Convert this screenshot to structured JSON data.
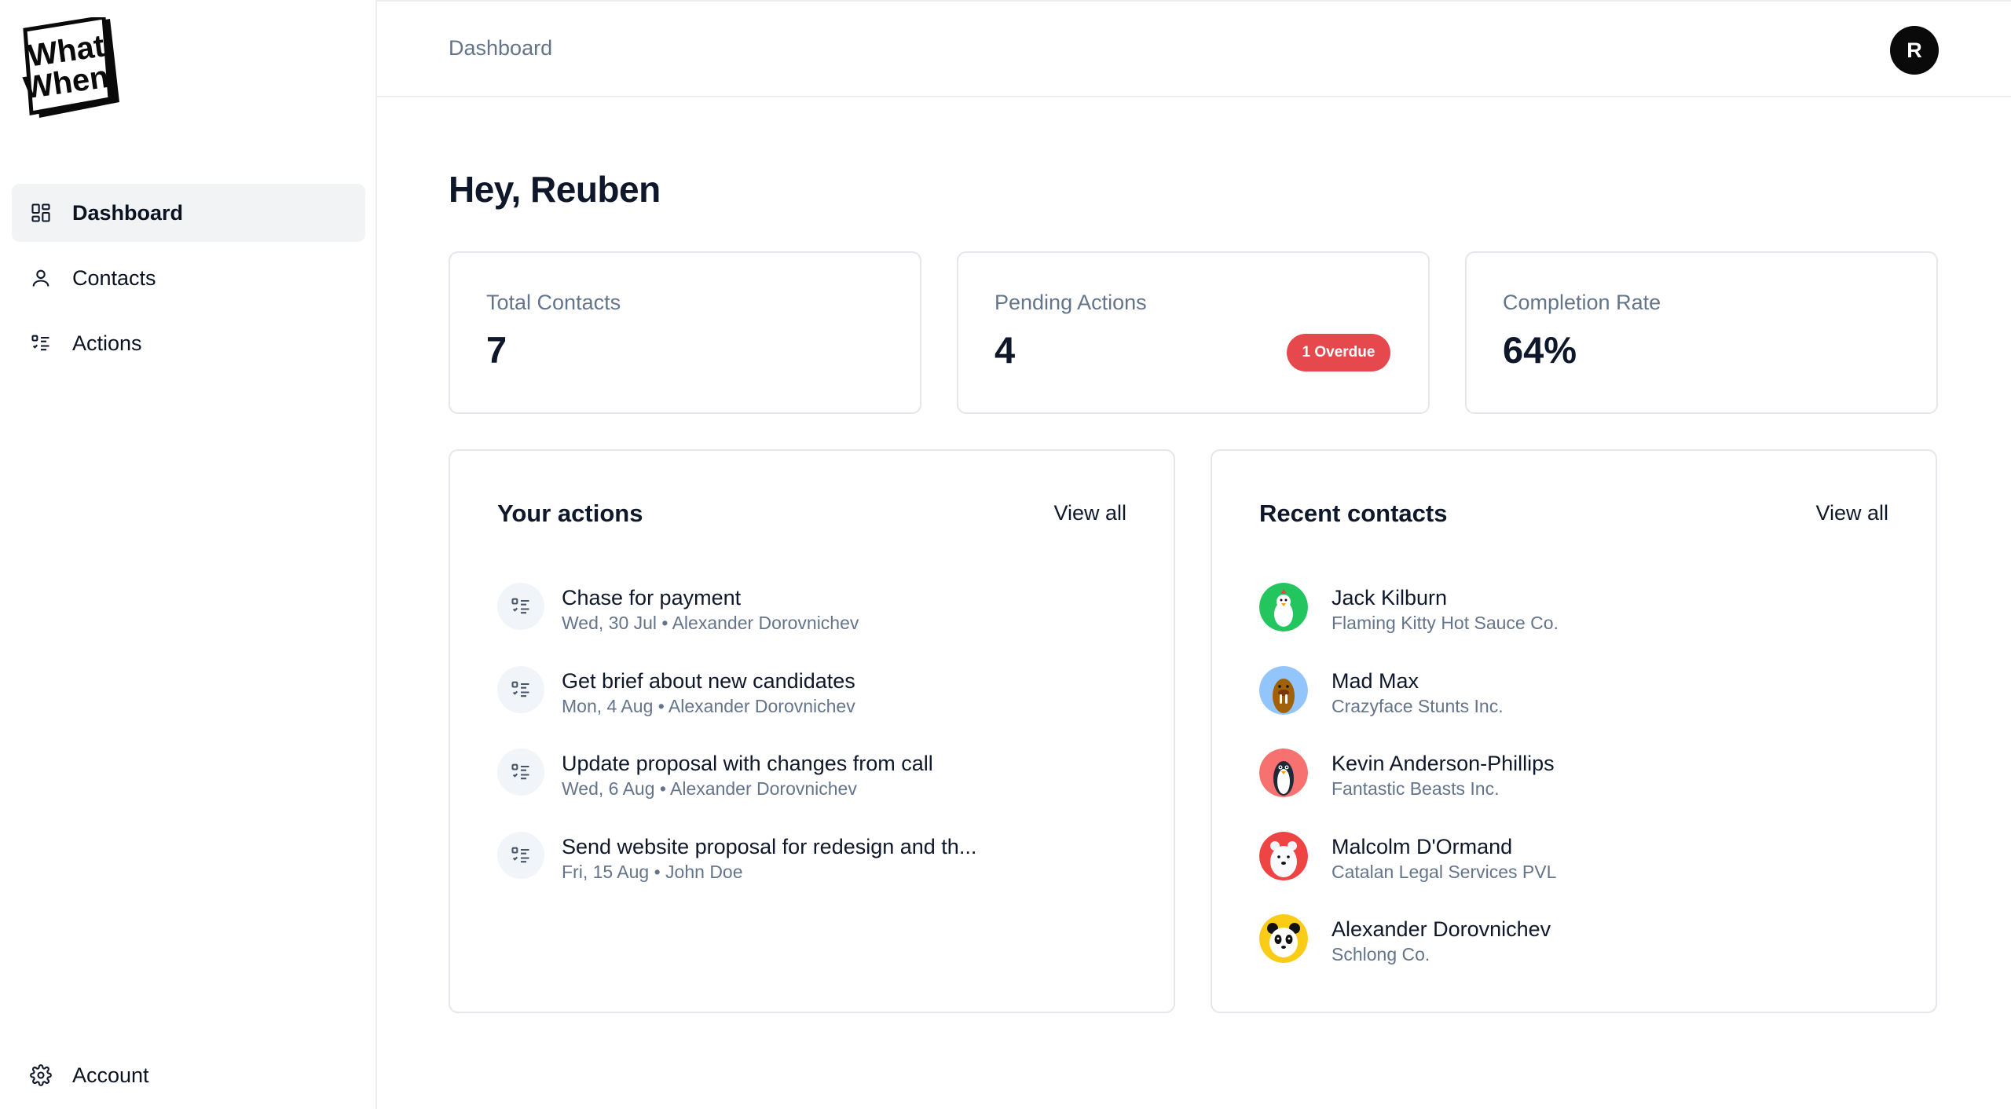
{
  "app": {
    "logo_text_line1": "What",
    "logo_text_line2": "When"
  },
  "sidebar": {
    "items": [
      {
        "label": "Dashboard",
        "icon": "dashboard-icon",
        "active": true
      },
      {
        "label": "Contacts",
        "icon": "user-icon",
        "active": false
      },
      {
        "label": "Actions",
        "icon": "list-check-icon",
        "active": false
      }
    ],
    "account": {
      "label": "Account",
      "icon": "gear-icon"
    }
  },
  "header": {
    "breadcrumb": "Dashboard",
    "avatar_initial": "R"
  },
  "main": {
    "greeting": "Hey, Reuben",
    "stats": [
      {
        "label": "Total Contacts",
        "value": "7"
      },
      {
        "label": "Pending Actions",
        "value": "4",
        "badge": "1 Overdue"
      },
      {
        "label": "Completion Rate",
        "value": "64%"
      }
    ],
    "actions_panel": {
      "title": "Your actions",
      "view_all": "View all",
      "items": [
        {
          "title": "Chase for payment",
          "meta": "Wed, 30 Jul • Alexander Dorovnichev"
        },
        {
          "title": "Get brief about new candidates",
          "meta": "Mon, 4 Aug • Alexander Dorovnichev"
        },
        {
          "title": "Update proposal with changes from call",
          "meta": "Wed, 6 Aug • Alexander Dorovnichev"
        },
        {
          "title": "Send website proposal for redesign and th...",
          "meta": "Fri, 15 Aug • John Doe"
        }
      ]
    },
    "contacts_panel": {
      "title": "Recent contacts",
      "view_all": "View all",
      "items": [
        {
          "name": "Jack Kilburn",
          "company": "Flaming Kitty Hot Sauce Co.",
          "avatar": "chicken-avatar",
          "color": "#22c55e"
        },
        {
          "name": "Mad Max",
          "company": "Crazyface Stunts Inc.",
          "avatar": "walrus-avatar",
          "color": "#93c5fd"
        },
        {
          "name": "Kevin Anderson-Phillips",
          "company": "Fantastic Beasts Inc.",
          "avatar": "penguin-avatar",
          "color": "#f87171"
        },
        {
          "name": "Malcolm D'Ormand",
          "company": "Catalan Legal Services PVL",
          "avatar": "polar-bear-avatar",
          "color": "#ef4444"
        },
        {
          "name": "Alexander Dorovnichev",
          "company": "Schlong Co.",
          "avatar": "panda-avatar",
          "color": "#facc15"
        }
      ]
    }
  },
  "colors": {
    "overdue_badge": "#e5484d",
    "active_nav_bg": "#f1f3f5",
    "muted_text": "#64748b"
  }
}
